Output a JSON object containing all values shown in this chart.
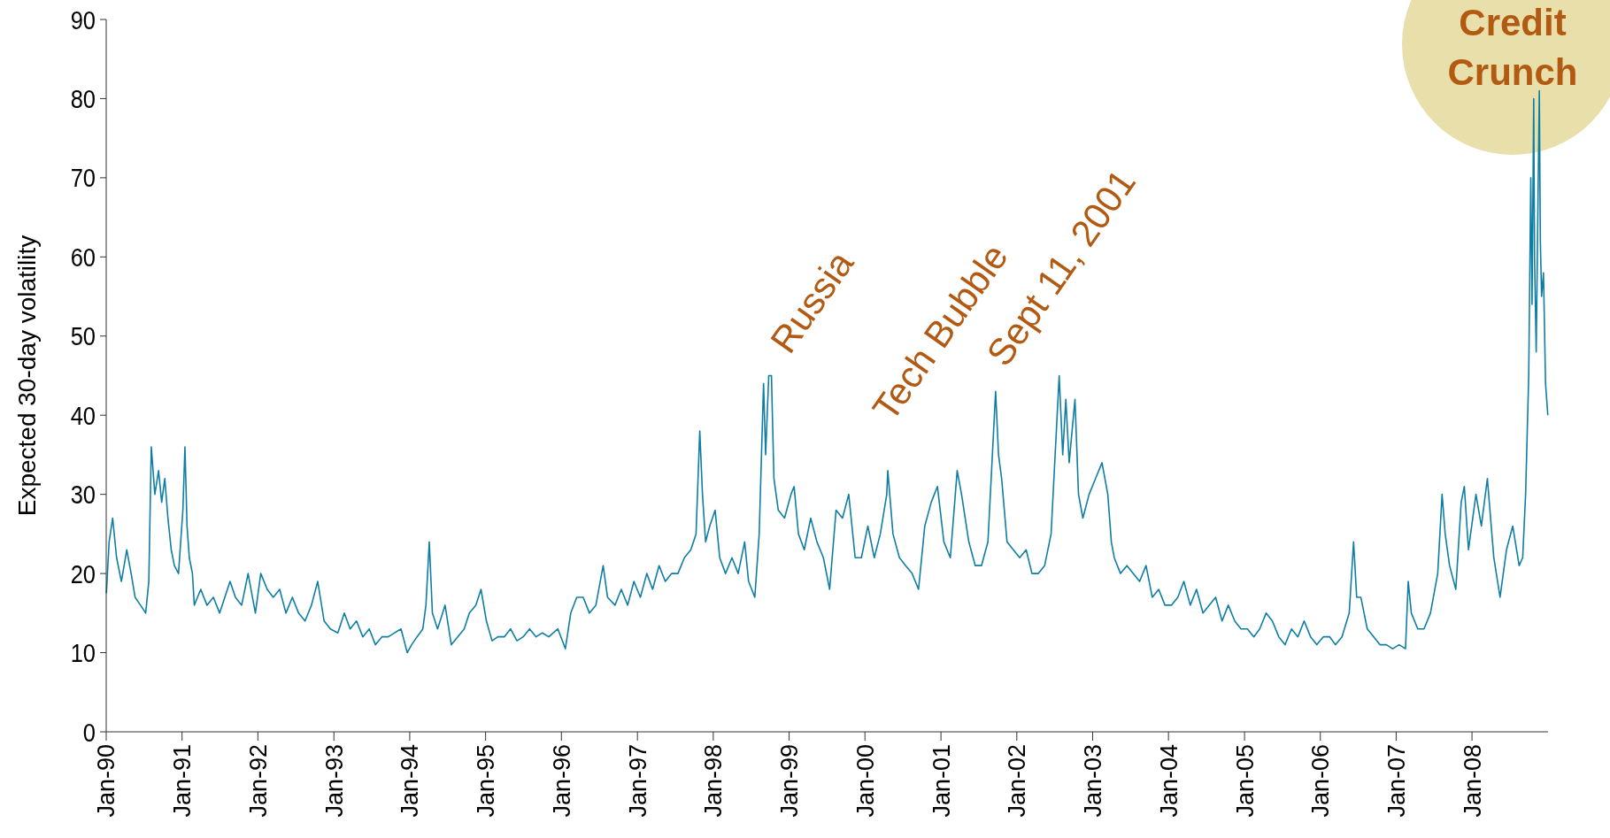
{
  "chart_data": {
    "type": "line",
    "ylabel": "Expected 30-day volatility",
    "x": [
      "1990-01-02",
      "1990-01-15",
      "1990-02-01",
      "1990-02-20",
      "1990-03-15",
      "1990-04-10",
      "1990-05-01",
      "1990-05-20",
      "1990-06-15",
      "1990-07-10",
      "1990-07-25",
      "1990-08-06",
      "1990-08-23",
      "1990-09-10",
      "1990-09-25",
      "1990-10-10",
      "1990-10-25",
      "1990-11-10",
      "1990-11-25",
      "1990-12-15",
      "1991-01-05",
      "1991-01-15",
      "1991-01-25",
      "1991-02-05",
      "1991-02-20",
      "1991-03-01",
      "1991-04-01",
      "1991-05-01",
      "1991-06-01",
      "1991-07-01",
      "1991-08-20",
      "1991-09-15",
      "1991-10-15",
      "1991-11-15",
      "1991-12-20",
      "1992-01-15",
      "1992-02-15",
      "1992-03-15",
      "1992-04-15",
      "1992-05-15",
      "1992-06-15",
      "1992-07-15",
      "1992-08-15",
      "1992-09-15",
      "1992-10-15",
      "1992-11-15",
      "1992-12-15",
      "1993-01-20",
      "1993-02-20",
      "1993-03-20",
      "1993-04-20",
      "1993-05-20",
      "1993-06-20",
      "1993-07-20",
      "1993-08-20",
      "1993-09-20",
      "1993-10-20",
      "1993-11-20",
      "1993-12-20",
      "1994-01-10",
      "1994-02-05",
      "1994-03-05",
      "1994-03-20",
      "1994-04-05",
      "1994-04-20",
      "1994-05-15",
      "1994-06-20",
      "1994-07-20",
      "1994-08-20",
      "1994-09-20",
      "1994-10-15",
      "1994-11-15",
      "1994-12-10",
      "1995-01-05",
      "1995-02-01",
      "1995-03-01",
      "1995-04-01",
      "1995-05-01",
      "1995-06-01",
      "1995-07-01",
      "1995-08-01",
      "1995-09-01",
      "1995-10-01",
      "1995-11-01",
      "1995-12-15",
      "1996-01-20",
      "1996-02-15",
      "1996-03-15",
      "1996-04-15",
      "1996-05-15",
      "1996-06-15",
      "1996-07-20",
      "1996-08-10",
      "1996-09-15",
      "1996-10-15",
      "1996-11-15",
      "1996-12-15",
      "1997-01-15",
      "1997-02-15",
      "1997-03-15",
      "1997-04-15",
      "1997-05-15",
      "1997-06-15",
      "1997-07-15",
      "1997-08-15",
      "1997-09-15",
      "1997-10-10",
      "1997-10-28",
      "1997-11-10",
      "1997-11-25",
      "1997-12-15",
      "1998-01-10",
      "1998-02-01",
      "1998-03-01",
      "1998-04-01",
      "1998-05-01",
      "1998-06-01",
      "1998-06-20",
      "1998-07-20",
      "1998-08-10",
      "1998-08-31",
      "1998-09-10",
      "1998-09-25",
      "1998-10-08",
      "1998-10-20",
      "1998-11-10",
      "1998-12-10",
      "1999-01-10",
      "1999-01-25",
      "1999-02-15",
      "1999-03-15",
      "1999-04-15",
      "1999-05-15",
      "1999-06-15",
      "1999-07-15",
      "1999-08-15",
      "1999-09-15",
      "1999-10-15",
      "1999-11-15",
      "1999-12-15",
      "2000-01-15",
      "2000-02-15",
      "2000-03-15",
      "2000-04-15",
      "2000-04-20",
      "2000-05-15",
      "2000-06-15",
      "2000-07-15",
      "2000-08-15",
      "2000-09-15",
      "2000-10-15",
      "2000-11-15",
      "2000-12-15",
      "2001-01-15",
      "2001-02-15",
      "2001-03-20",
      "2001-04-10",
      "2001-05-15",
      "2001-06-15",
      "2001-07-15",
      "2001-08-15",
      "2001-09-21",
      "2001-10-05",
      "2001-10-20",
      "2001-11-15",
      "2001-12-15",
      "2002-01-15",
      "2002-02-15",
      "2002-03-15",
      "2002-04-15",
      "2002-05-15",
      "2002-06-15",
      "2002-07-24",
      "2002-08-10",
      "2002-08-25",
      "2002-09-10",
      "2002-10-08",
      "2002-10-25",
      "2002-11-15",
      "2002-12-15",
      "2003-01-15",
      "2003-02-15",
      "2003-03-15",
      "2003-04-01",
      "2003-04-15",
      "2003-05-15",
      "2003-06-15",
      "2003-07-15",
      "2003-08-15",
      "2003-09-15",
      "2003-10-15",
      "2003-11-15",
      "2003-12-15",
      "2004-01-15",
      "2004-02-15",
      "2004-03-15",
      "2004-04-15",
      "2004-05-15",
      "2004-06-15",
      "2004-07-15",
      "2004-08-15",
      "2004-09-15",
      "2004-10-15",
      "2004-11-15",
      "2004-12-15",
      "2005-01-15",
      "2005-02-15",
      "2005-03-15",
      "2005-04-15",
      "2005-05-15",
      "2005-06-15",
      "2005-07-15",
      "2005-08-15",
      "2005-09-15",
      "2005-10-15",
      "2005-11-15",
      "2005-12-15",
      "2006-01-15",
      "2006-02-15",
      "2006-03-15",
      "2006-04-15",
      "2006-05-20",
      "2006-06-10",
      "2006-06-25",
      "2006-07-15",
      "2006-08-15",
      "2006-09-15",
      "2006-10-15",
      "2006-11-15",
      "2006-12-15",
      "2007-01-15",
      "2007-02-15",
      "2007-02-28",
      "2007-03-15",
      "2007-04-15",
      "2007-05-15",
      "2007-06-15",
      "2007-07-20",
      "2007-08-10",
      "2007-08-25",
      "2007-09-15",
      "2007-10-15",
      "2007-11-10",
      "2007-11-25",
      "2007-12-15",
      "2008-01-20",
      "2008-02-15",
      "2008-03-15",
      "2008-04-15",
      "2008-05-15",
      "2008-06-15",
      "2008-07-15",
      "2008-08-15",
      "2008-09-01",
      "2008-09-15",
      "2008-09-30",
      "2008-10-10",
      "2008-10-16",
      "2008-10-24",
      "2008-10-28",
      "2008-11-05",
      "2008-11-20",
      "2008-11-25",
      "2008-12-01",
      "2008-12-10",
      "2008-12-20",
      "2008-12-31"
    ],
    "values": [
      17.5,
      24,
      27,
      22,
      19,
      23,
      20,
      17,
      16,
      15,
      19,
      36,
      30,
      33,
      29,
      32,
      27,
      23,
      21,
      20,
      28,
      36,
      26,
      22,
      20,
      16,
      18,
      16,
      17,
      15,
      19,
      17,
      16,
      20,
      15,
      20,
      18,
      17,
      18,
      15,
      17,
      15,
      14,
      16,
      19,
      14,
      13,
      12.5,
      15,
      13,
      14,
      12,
      13,
      11,
      12,
      12,
      12.5,
      13,
      10,
      11,
      12,
      13,
      16,
      24,
      15,
      13,
      16,
      11,
      12,
      13,
      15,
      16,
      18,
      14,
      11.5,
      12,
      12,
      13,
      11.5,
      12,
      13,
      12,
      12.5,
      12,
      13,
      10.5,
      15,
      17,
      17,
      15,
      16,
      21,
      17,
      16,
      18,
      16,
      19,
      17,
      20,
      18,
      21,
      19,
      20,
      20,
      22,
      23,
      25,
      38,
      30,
      24,
      26,
      28,
      22,
      20,
      22,
      20,
      24,
      19,
      17,
      25,
      44,
      35,
      45,
      45,
      32,
      28,
      27,
      30,
      31,
      25,
      23,
      27,
      24,
      22,
      18,
      28,
      27,
      30,
      22,
      22,
      26,
      22,
      25,
      30,
      33,
      25,
      22,
      21,
      20,
      18,
      26,
      29,
      31,
      24,
      22,
      33,
      30,
      24,
      21,
      21,
      24,
      43,
      35,
      32,
      24,
      23,
      22,
      23,
      20,
      20,
      21,
      25,
      45,
      35,
      42,
      34,
      42,
      30,
      27,
      30,
      32,
      34,
      30,
      24,
      22,
      20,
      21,
      20,
      19,
      21,
      17,
      18,
      16,
      16,
      17,
      19,
      16,
      18,
      15,
      16,
      17,
      14,
      16,
      14,
      13,
      13,
      12,
      13,
      15,
      14,
      12,
      11,
      13,
      12,
      14,
      12,
      11,
      12,
      12,
      11,
      12,
      15,
      24,
      17,
      17,
      13,
      12,
      11,
      11,
      10.5,
      11,
      10.5,
      19,
      15,
      13,
      13,
      15,
      20,
      30,
      25,
      21,
      18,
      29,
      31,
      23,
      30,
      26,
      32,
      22,
      17,
      23,
      26,
      21,
      22,
      30,
      45,
      70,
      54,
      80,
      60,
      48,
      81,
      62,
      55,
      58,
      44,
      40
    ],
    "color": "#0f7ea5",
    "line_style": "solid",
    "marker": "none",
    "grid": false,
    "xlim": [
      "1990-01-01",
      "2009-01-01"
    ],
    "xticks": [
      {
        "value": "1990-01-01",
        "label": "Jan-90"
      },
      {
        "value": "1991-01-01",
        "label": "Jan-91"
      },
      {
        "value": "1992-01-01",
        "label": "Jan-92"
      },
      {
        "value": "1993-01-01",
        "label": "Jan-93"
      },
      {
        "value": "1994-01-01",
        "label": "Jan-94"
      },
      {
        "value": "1995-01-01",
        "label": "Jan-95"
      },
      {
        "value": "1996-01-01",
        "label": "Jan-96"
      },
      {
        "value": "1997-01-01",
        "label": "Jan-97"
      },
      {
        "value": "1998-01-01",
        "label": "Jan-98"
      },
      {
        "value": "1999-01-01",
        "label": "Jan-99"
      },
      {
        "value": "2000-01-01",
        "label": "Jan-00"
      },
      {
        "value": "2001-01-01",
        "label": "Jan-01"
      },
      {
        "value": "2002-01-01",
        "label": "Jan-02"
      },
      {
        "value": "2003-01-01",
        "label": "Jan-03"
      },
      {
        "value": "2004-01-01",
        "label": "Jan-04"
      },
      {
        "value": "2005-01-01",
        "label": "Jan-05"
      },
      {
        "value": "2006-01-01",
        "label": "Jan-06"
      },
      {
        "value": "2007-01-01",
        "label": "Jan-07"
      },
      {
        "value": "2008-01-01",
        "label": "Jan-08"
      }
    ],
    "ylim": [
      0,
      90
    ],
    "yticks": [
      0,
      10,
      20,
      30,
      40,
      50,
      60,
      70,
      80,
      90
    ],
    "annotations": [
      "Russia",
      "Tech Bubble",
      "Sept 11, 2001",
      "Credit Crunch"
    ]
  }
}
